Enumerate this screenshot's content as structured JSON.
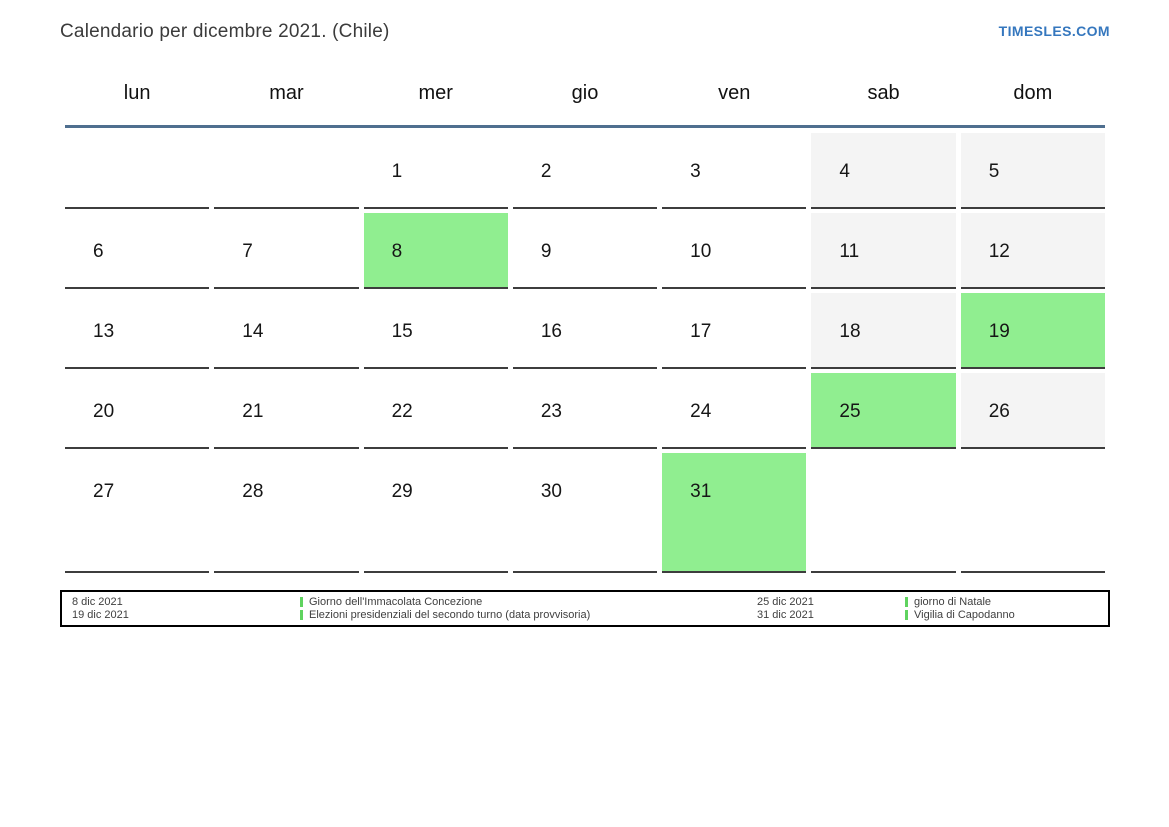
{
  "header": {
    "title": "Calendario per dicembre 2021. (Chile)",
    "brand": "TIMESLES.COM"
  },
  "calendar": {
    "weekday_headers": [
      "lun",
      "mar",
      "mer",
      "gio",
      "ven",
      "sab",
      "dom"
    ],
    "weeks": [
      [
        {
          "day": "",
          "type": "empty"
        },
        {
          "day": "",
          "type": "empty"
        },
        {
          "day": "1",
          "type": "normal"
        },
        {
          "day": "2",
          "type": "normal"
        },
        {
          "day": "3",
          "type": "normal"
        },
        {
          "day": "4",
          "type": "weekend"
        },
        {
          "day": "5",
          "type": "weekend"
        }
      ],
      [
        {
          "day": "6",
          "type": "normal"
        },
        {
          "day": "7",
          "type": "normal"
        },
        {
          "day": "8",
          "type": "holiday"
        },
        {
          "day": "9",
          "type": "normal"
        },
        {
          "day": "10",
          "type": "normal"
        },
        {
          "day": "11",
          "type": "weekend"
        },
        {
          "day": "12",
          "type": "weekend"
        }
      ],
      [
        {
          "day": "13",
          "type": "normal"
        },
        {
          "day": "14",
          "type": "normal"
        },
        {
          "day": "15",
          "type": "normal"
        },
        {
          "day": "16",
          "type": "normal"
        },
        {
          "day": "17",
          "type": "normal"
        },
        {
          "day": "18",
          "type": "weekend"
        },
        {
          "day": "19",
          "type": "holiday"
        }
      ],
      [
        {
          "day": "20",
          "type": "normal"
        },
        {
          "day": "21",
          "type": "normal"
        },
        {
          "day": "22",
          "type": "normal"
        },
        {
          "day": "23",
          "type": "normal"
        },
        {
          "day": "24",
          "type": "normal"
        },
        {
          "day": "25",
          "type": "holiday"
        },
        {
          "day": "26",
          "type": "weekend"
        }
      ],
      [
        {
          "day": "27",
          "type": "normal"
        },
        {
          "day": "28",
          "type": "normal"
        },
        {
          "day": "29",
          "type": "normal"
        },
        {
          "day": "30",
          "type": "normal"
        },
        {
          "day": "31",
          "type": "holiday"
        },
        {
          "day": "",
          "type": "empty"
        },
        {
          "day": "",
          "type": "empty"
        }
      ]
    ]
  },
  "legend": {
    "groups": [
      {
        "entries": [
          {
            "date": "8 dic 2021",
            "description": "Giorno dell'Immacolata Concezione"
          },
          {
            "date": "19 dic 2021",
            "description": "Elezioni presidenziali del secondo turno (data provvisoria)"
          }
        ]
      },
      {
        "entries": [
          {
            "date": "25 dic 2021",
            "description": "giorno di Natale"
          },
          {
            "date": "31 dic 2021",
            "description": "Vigilia di Capodanno"
          }
        ]
      }
    ]
  },
  "colors": {
    "holiday_green": "#90ee90",
    "weekend_gray": "#f4f4f4",
    "header_rule_blue": "#4f6f8f",
    "brand_blue": "#3577be",
    "legend_marker_green": "#5fd35f",
    "cell_border": "#3d3d3d"
  }
}
